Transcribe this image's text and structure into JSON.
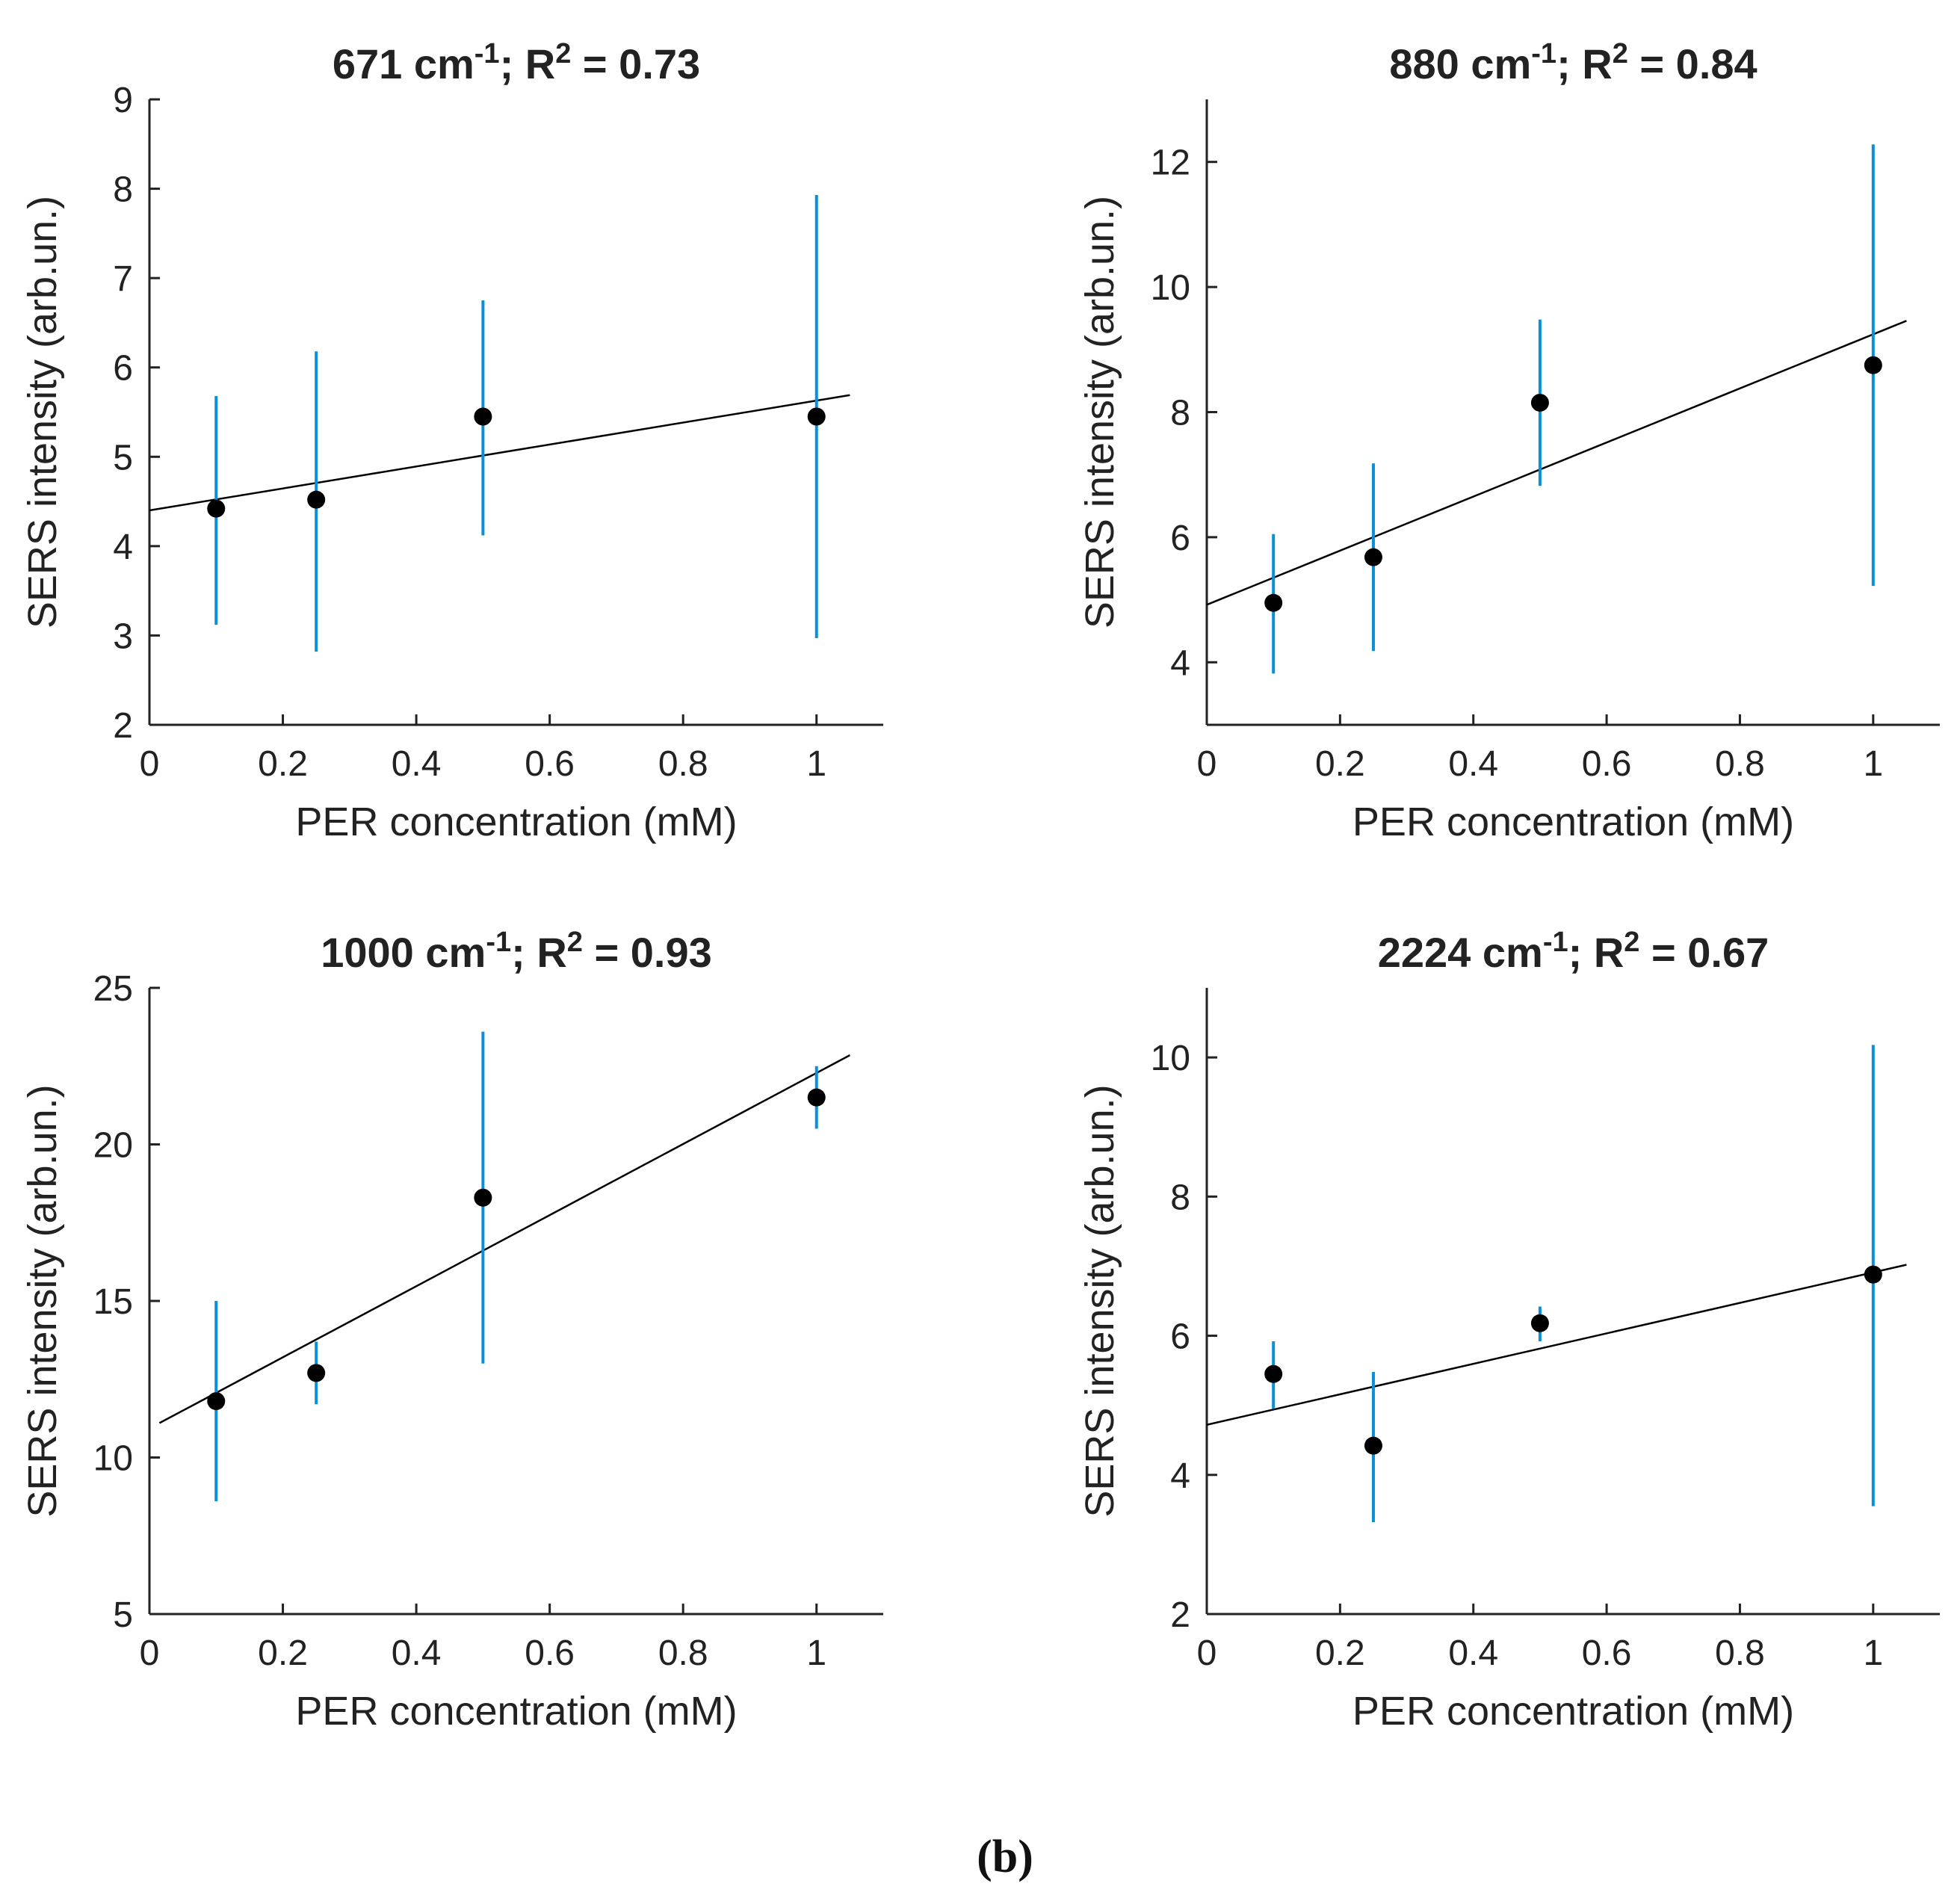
{
  "figure": {
    "caption": "(b)",
    "errorbar_color": "#0b8fd6",
    "point_color": "#000000",
    "fit_color": "#000000"
  },
  "chart_data": [
    {
      "type": "scatter",
      "title_prefix": "671 cm",
      "title_exponent": "-1",
      "title_mid": "; R",
      "title_r_exponent": "2",
      "title_suffix": " = 0.73",
      "xlabel": "PER concentration (mM)",
      "ylabel": "SERS intensity (arb.un.)",
      "xlim": [
        0,
        1.1
      ],
      "ylim": [
        2,
        9
      ],
      "xticks": [
        0,
        0.2,
        0.4,
        0.6,
        0.8,
        1
      ],
      "xtick_labels": [
        "0",
        "0.2",
        "0.4",
        "0.6",
        "0.8",
        "1"
      ],
      "yticks": [
        2,
        3,
        4,
        5,
        6,
        7,
        8,
        9
      ],
      "ytick_labels": [
        "2",
        "3",
        "4",
        "5",
        "6",
        "7",
        "8",
        "9"
      ],
      "points": [
        {
          "x": 0.1,
          "y": 4.42,
          "err_low": 3.12,
          "err_high": 5.68
        },
        {
          "x": 0.25,
          "y": 4.52,
          "err_low": 2.82,
          "err_high": 6.18
        },
        {
          "x": 0.5,
          "y": 5.45,
          "err_low": 4.12,
          "err_high": 6.75
        },
        {
          "x": 1,
          "y": 5.45,
          "err_low": 2.97,
          "err_high": 7.93
        }
      ],
      "fit": {
        "x": [
          0,
          1.05
        ],
        "y": [
          4.4,
          5.69
        ]
      }
    },
    {
      "type": "scatter",
      "title_prefix": "880 cm",
      "title_exponent": "-1",
      "title_mid": "; R",
      "title_r_exponent": "2",
      "title_suffix": " = 0.84",
      "xlabel": "PER concentration (mM)",
      "ylabel": "SERS intensity (arb.un.)",
      "xlim": [
        0,
        1.1
      ],
      "ylim": [
        3,
        13
      ],
      "xticks": [
        0,
        0.2,
        0.4,
        0.6,
        0.8,
        1
      ],
      "xtick_labels": [
        "0",
        "0.2",
        "0.4",
        "0.6",
        "0.8",
        "1"
      ],
      "yticks": [
        4,
        6,
        8,
        10,
        12
      ],
      "ytick_labels": [
        "4",
        "6",
        "8",
        "10",
        "12"
      ],
      "points": [
        {
          "x": 0.1,
          "y": 4.95,
          "err_low": 3.82,
          "err_high": 6.05
        },
        {
          "x": 0.25,
          "y": 5.68,
          "err_low": 4.18,
          "err_high": 7.18
        },
        {
          "x": 0.5,
          "y": 8.15,
          "err_low": 6.82,
          "err_high": 9.48
        },
        {
          "x": 1,
          "y": 8.75,
          "err_low": 5.22,
          "err_high": 12.28
        }
      ],
      "fit": {
        "x": [
          0,
          1.05
        ],
        "y": [
          4.92,
          9.46
        ]
      }
    },
    {
      "type": "scatter",
      "title_prefix": "1000 cm",
      "title_exponent": "-1",
      "title_mid": "; R",
      "title_r_exponent": "2",
      "title_suffix": " = 0.93",
      "xlabel": "PER concentration (mM)",
      "ylabel": "SERS intensity (arb.un.)",
      "xlim": [
        0,
        1.1
      ],
      "ylim": [
        5,
        25
      ],
      "xticks": [
        0,
        0.2,
        0.4,
        0.6,
        0.8,
        1
      ],
      "xtick_labels": [
        "0",
        "0.2",
        "0.4",
        "0.6",
        "0.8",
        "1"
      ],
      "yticks": [
        5,
        10,
        15,
        20,
        25
      ],
      "ytick_labels": [
        "5",
        "10",
        "15",
        "20",
        "25"
      ],
      "points": [
        {
          "x": 0.1,
          "y": 11.8,
          "err_low": 8.6,
          "err_high": 15.0
        },
        {
          "x": 0.25,
          "y": 12.7,
          "err_low": 11.7,
          "err_high": 13.7
        },
        {
          "x": 0.5,
          "y": 18.3,
          "err_low": 13.0,
          "err_high": 23.6
        },
        {
          "x": 1,
          "y": 21.5,
          "err_low": 20.5,
          "err_high": 22.5
        }
      ],
      "fit": {
        "x": [
          0.015,
          1.05
        ],
        "y": [
          11.1,
          22.85
        ]
      }
    },
    {
      "type": "scatter",
      "title_prefix": "2224 cm",
      "title_exponent": "-1",
      "title_mid": "; R",
      "title_r_exponent": "2",
      "title_suffix": " = 0.67",
      "xlabel": "PER concentration (mM)",
      "ylabel": "SERS intensity (arb.un.)",
      "xlim": [
        0,
        1.1
      ],
      "ylim": [
        2,
        11
      ],
      "xticks": [
        0,
        0.2,
        0.4,
        0.6,
        0.8,
        1
      ],
      "xtick_labels": [
        "0",
        "0.2",
        "0.4",
        "0.6",
        "0.8",
        "1"
      ],
      "yticks": [
        2,
        4,
        6,
        8,
        10
      ],
      "ytick_labels": [
        "2",
        "4",
        "6",
        "8",
        "10"
      ],
      "points": [
        {
          "x": 0.1,
          "y": 5.45,
          "err_low": 4.95,
          "err_high": 5.92
        },
        {
          "x": 0.25,
          "y": 4.42,
          "err_low": 3.32,
          "err_high": 5.48
        },
        {
          "x": 0.5,
          "y": 6.18,
          "err_low": 5.92,
          "err_high": 6.42
        },
        {
          "x": 1,
          "y": 6.88,
          "err_low": 3.55,
          "err_high": 10.18
        }
      ],
      "fit": {
        "x": [
          0,
          1.05
        ],
        "y": [
          4.72,
          7.02
        ]
      }
    }
  ]
}
